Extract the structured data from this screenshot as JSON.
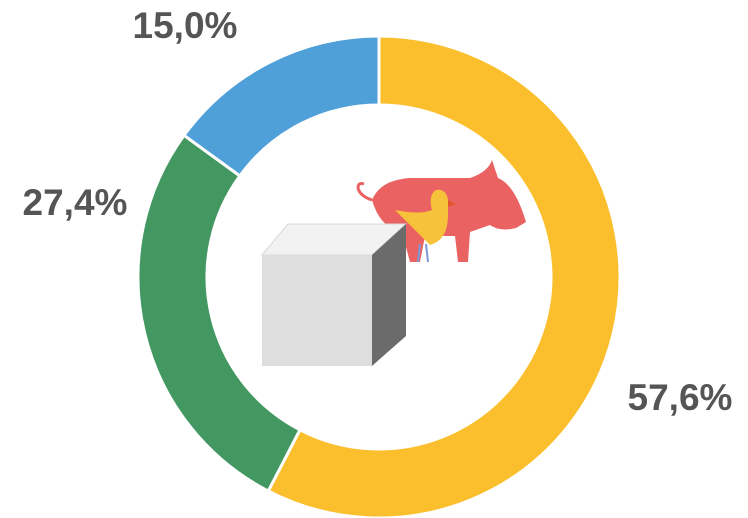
{
  "chart_data": {
    "type": "donut",
    "values": [
      57.6,
      27.4,
      15.0
    ],
    "value_labels": [
      "57,6%",
      "27,4%",
      "15,0%"
    ],
    "colors": [
      "#fbbf2d",
      "#439862",
      "#4f9fd8"
    ]
  }
}
